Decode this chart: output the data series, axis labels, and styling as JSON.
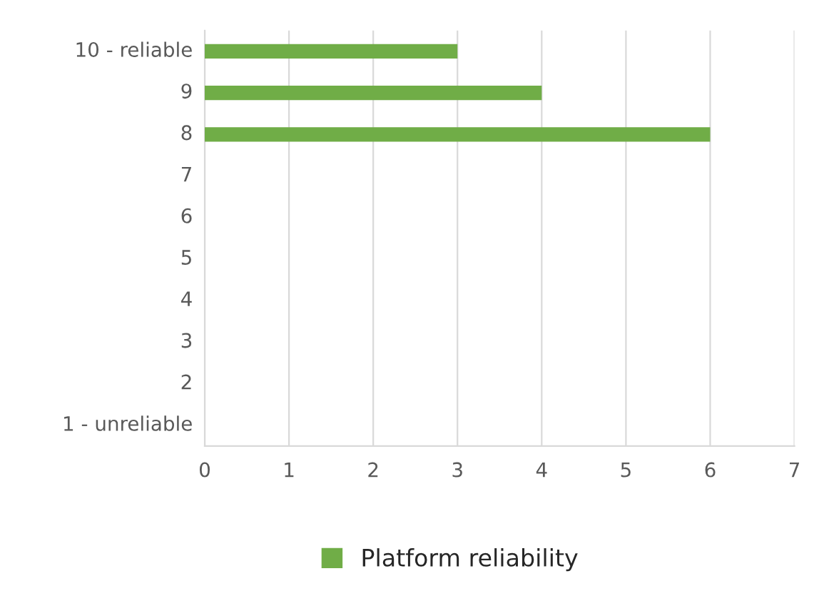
{
  "chart_data": {
    "type": "bar",
    "orientation": "horizontal",
    "categories": [
      "10 - reliable",
      "9",
      "8",
      "7",
      "6",
      "5",
      "4",
      "3",
      "2",
      "1 - unreliable"
    ],
    "series": [
      {
        "name": "Platform reliability",
        "color": "#70ad47",
        "values": [
          3,
          4,
          6,
          0,
          0,
          0,
          0,
          0,
          0,
          0
        ]
      }
    ],
    "xlim": [
      0,
      7
    ],
    "xticks": [
      0,
      1,
      2,
      3,
      4,
      5,
      6,
      7
    ],
    "grid": "x",
    "legend": "bottom"
  }
}
